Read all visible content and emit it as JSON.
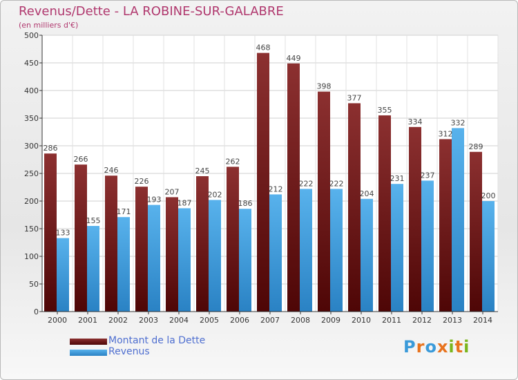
{
  "header": {
    "title": "Revenus/Dette - LA ROBINE-SUR-GALABRE",
    "subtitle": "(en milliers d'€)"
  },
  "legend": {
    "debt_label": "Montant de la Dette",
    "revenue_label": "Revenus"
  },
  "logo": {
    "text": "Proxiti",
    "letter_colors": [
      "#3a9ad9",
      "#e8731d",
      "#3a9ad9",
      "#e8731d",
      "#7ab51d",
      "#e8731d",
      "#7ab51d"
    ]
  },
  "colors": {
    "debt": "#7a1c1c",
    "revenue": "#3a9ad9",
    "title": "#b0386e",
    "legend_text": "#4f6fd0"
  },
  "chart_data": {
    "type": "bar",
    "categories": [
      "2000",
      "2001",
      "2002",
      "2003",
      "2004",
      "2005",
      "2006",
      "2007",
      "2008",
      "2009",
      "2010",
      "2011",
      "2012",
      "2013",
      "2014"
    ],
    "series": [
      {
        "name": "Montant de la Dette",
        "values": [
          286,
          266,
          246,
          226,
          207,
          245,
          262,
          468,
          449,
          398,
          377,
          355,
          334,
          312,
          289
        ]
      },
      {
        "name": "Revenus",
        "values": [
          133,
          155,
          171,
          193,
          187,
          202,
          186,
          212,
          222,
          222,
          204,
          231,
          237,
          332,
          200
        ]
      }
    ],
    "ylim": [
      0,
      500
    ],
    "yticks": [
      0,
      50,
      100,
      150,
      200,
      250,
      300,
      350,
      400,
      450,
      500
    ],
    "grid": true,
    "legend_position": "bottom-left"
  }
}
